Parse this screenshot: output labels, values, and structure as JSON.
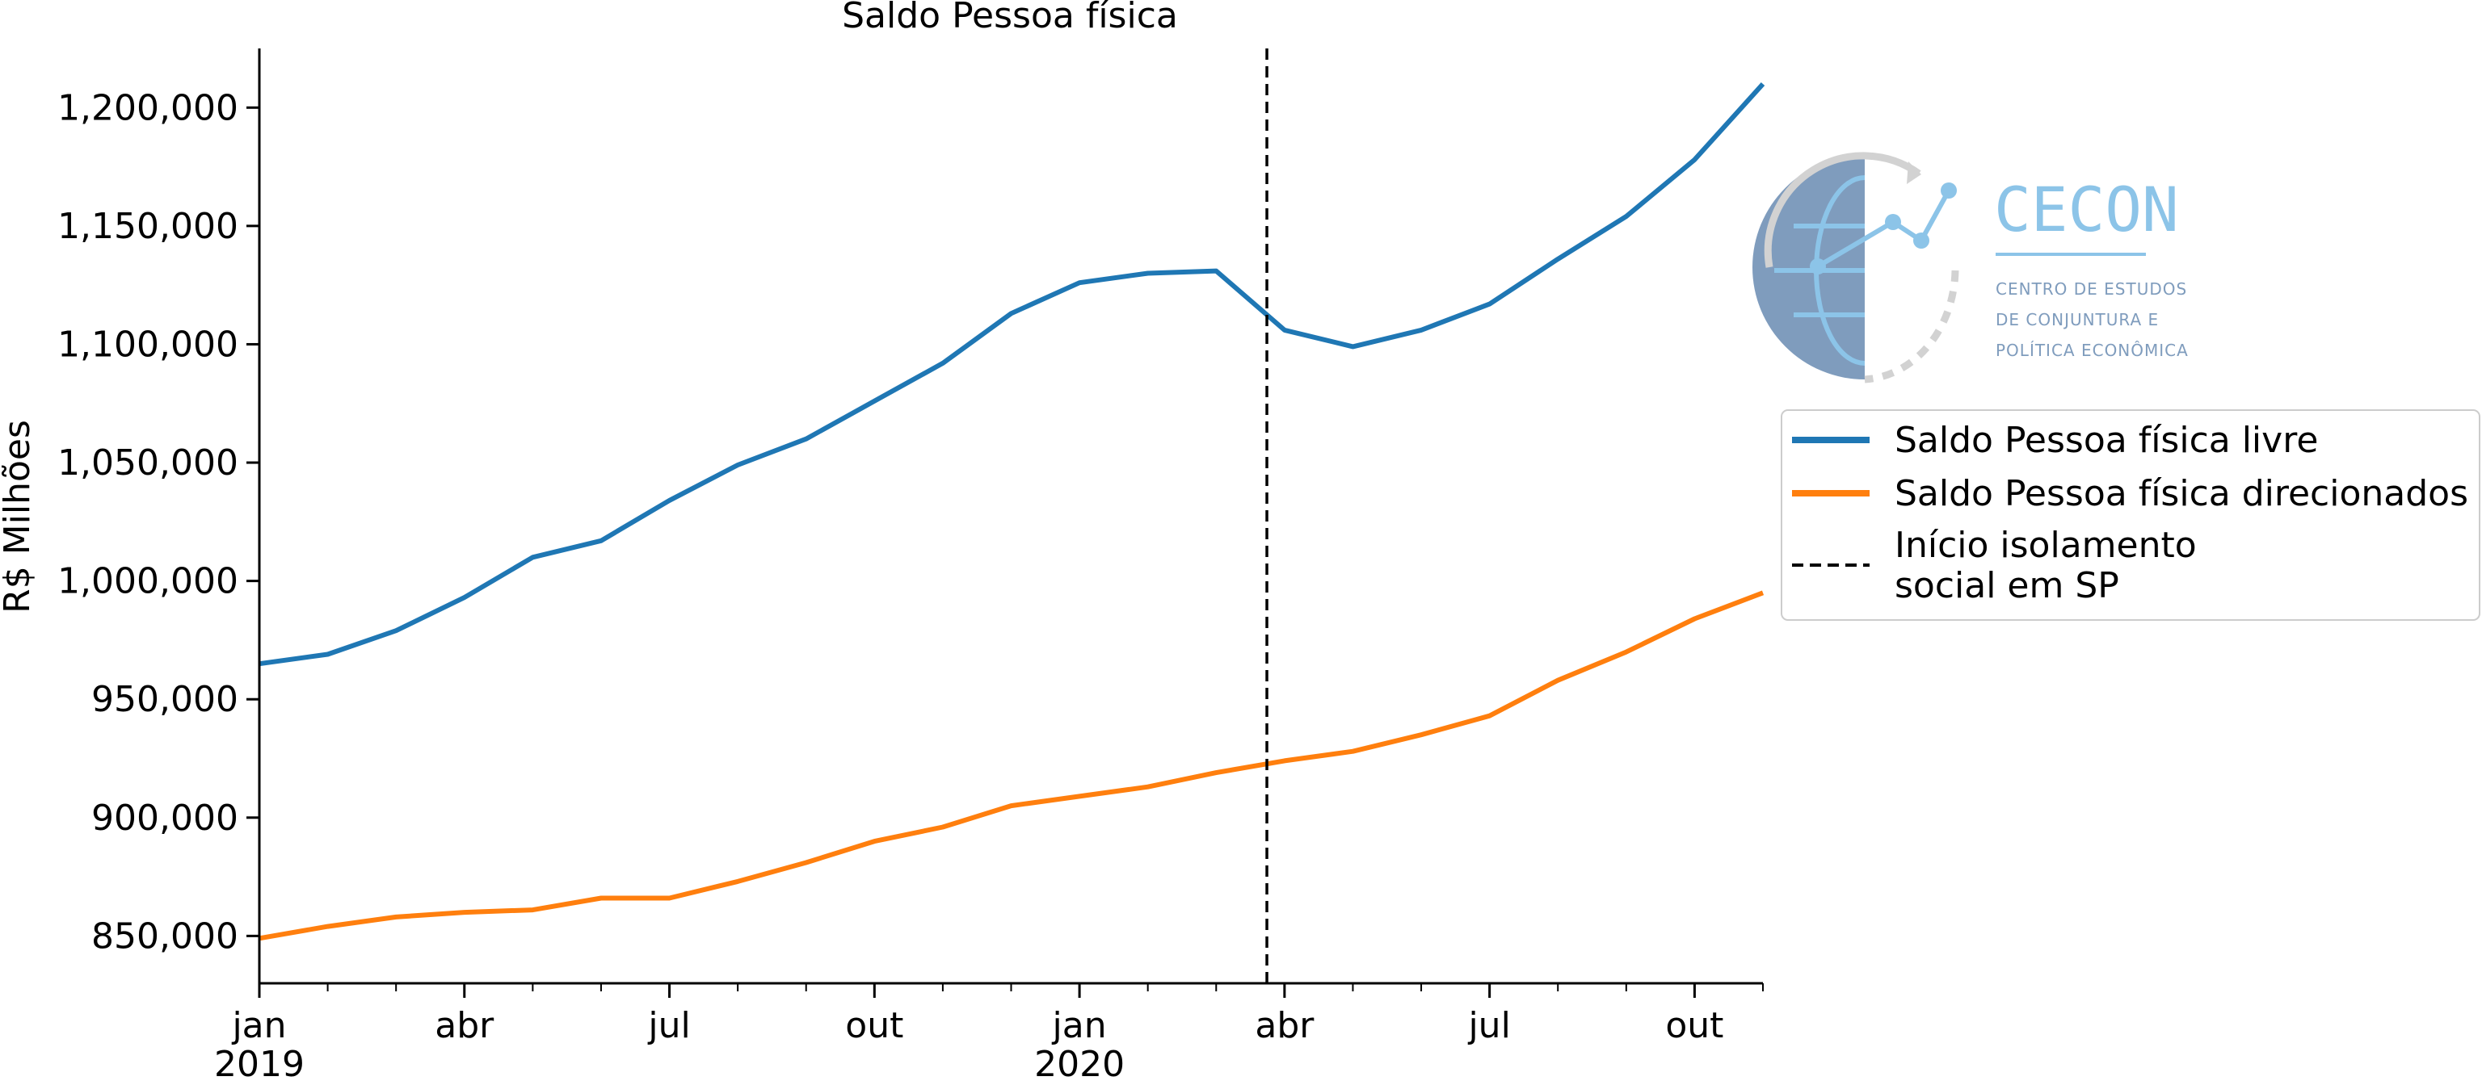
{
  "chart_data": {
    "type": "line",
    "title": "Saldo Pessoa física",
    "ylabel": "R$ Milhões",
    "xlabel": "",
    "ylim": [
      830000,
      1225000
    ],
    "x": [
      "2019-01",
      "2019-02",
      "2019-03",
      "2019-04",
      "2019-05",
      "2019-06",
      "2019-07",
      "2019-08",
      "2019-09",
      "2019-10",
      "2019-11",
      "2019-12",
      "2020-01",
      "2020-02",
      "2020-03",
      "2020-04",
      "2020-05",
      "2020-06",
      "2020-07",
      "2020-08",
      "2020-09",
      "2020-10",
      "2020-11"
    ],
    "x_ticks": [
      {
        "x": "2019-01",
        "label": "jan",
        "year": "2019"
      },
      {
        "x": "2019-04",
        "label": "abr",
        "year": ""
      },
      {
        "x": "2019-07",
        "label": "jul",
        "year": ""
      },
      {
        "x": "2019-10",
        "label": "out",
        "year": ""
      },
      {
        "x": "2020-01",
        "label": "jan",
        "year": "2020"
      },
      {
        "x": "2020-04",
        "label": "abr",
        "year": ""
      },
      {
        "x": "2020-07",
        "label": "jul",
        "year": ""
      },
      {
        "x": "2020-10",
        "label": "out",
        "year": ""
      }
    ],
    "y_ticks": [
      850000,
      900000,
      950000,
      1000000,
      1050000,
      1100000,
      1150000,
      1200000
    ],
    "y_tick_labels": [
      "850,000",
      "900,000",
      "950,000",
      "1,000,000",
      "1,050,000",
      "1,100,000",
      "1,150,000",
      "1,200,000"
    ],
    "series": [
      {
        "name": "Saldo Pessoa física livre",
        "color": "#1f77b4",
        "values": [
          965000,
          969000,
          979000,
          993000,
          1010000,
          1017000,
          1034000,
          1049000,
          1060000,
          1076000,
          1092000,
          1113000,
          1126000,
          1130000,
          1131000,
          1106000,
          1099000,
          1106000,
          1117000,
          1136000,
          1154000,
          1178000,
          1210000
        ]
      },
      {
        "name": "Saldo Pessoa física direcionados",
        "color": "#ff7f0e",
        "values": [
          849000,
          854000,
          858000,
          860000,
          861000,
          866000,
          866000,
          873000,
          881000,
          890000,
          896000,
          905000,
          909000,
          913000,
          919000,
          924000,
          928000,
          935000,
          943000,
          958000,
          970000,
          984000,
          995000
        ]
      }
    ],
    "vline": {
      "x": "2020-03-24",
      "label_line1": "Início isolamento",
      "label_line2": "social em SP",
      "color": "#000000",
      "style": "dashed"
    },
    "legend_position": "right"
  },
  "logo": {
    "name": "CECON",
    "line1": "CENTRO DE ESTUDOS",
    "line2": "DE CONJUNTURA E",
    "line3": "POLÍTICA ECONÔMICA"
  }
}
